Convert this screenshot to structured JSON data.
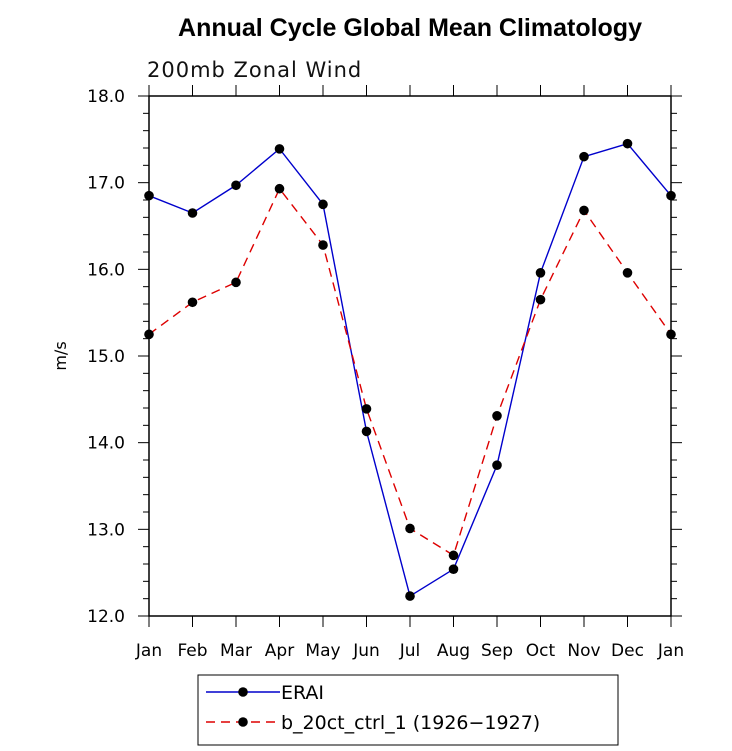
{
  "chart_data": {
    "type": "line",
    "title": "Annual Cycle Global Mean Climatology",
    "subtitle": "200mb Zonal Wind",
    "ylabel": "m/s",
    "xlabel": "",
    "ylim": [
      12.0,
      18.0
    ],
    "yticks": [
      "12.0",
      "13.0",
      "14.0",
      "15.0",
      "16.0",
      "17.0",
      "18.0"
    ],
    "categories": [
      "Jan",
      "Feb",
      "Mar",
      "Apr",
      "May",
      "Jun",
      "Jul",
      "Aug",
      "Sep",
      "Oct",
      "Nov",
      "Dec",
      "Jan"
    ],
    "series": [
      {
        "name": "ERAI",
        "color": "#0000cc",
        "dash": "solid",
        "values": [
          16.85,
          16.65,
          16.97,
          17.39,
          16.75,
          14.13,
          12.23,
          12.54,
          13.74,
          15.96,
          17.3,
          17.45,
          16.85
        ]
      },
      {
        "name": "b_20ct_ctrl_1 (1926−1927)",
        "color": "#dd0000",
        "dash": "dashed",
        "values": [
          15.25,
          15.62,
          15.85,
          16.93,
          16.28,
          14.39,
          13.01,
          12.7,
          14.31,
          15.65,
          16.68,
          15.96,
          15.25
        ]
      }
    ],
    "grid": false,
    "legend_position": "bottom"
  }
}
